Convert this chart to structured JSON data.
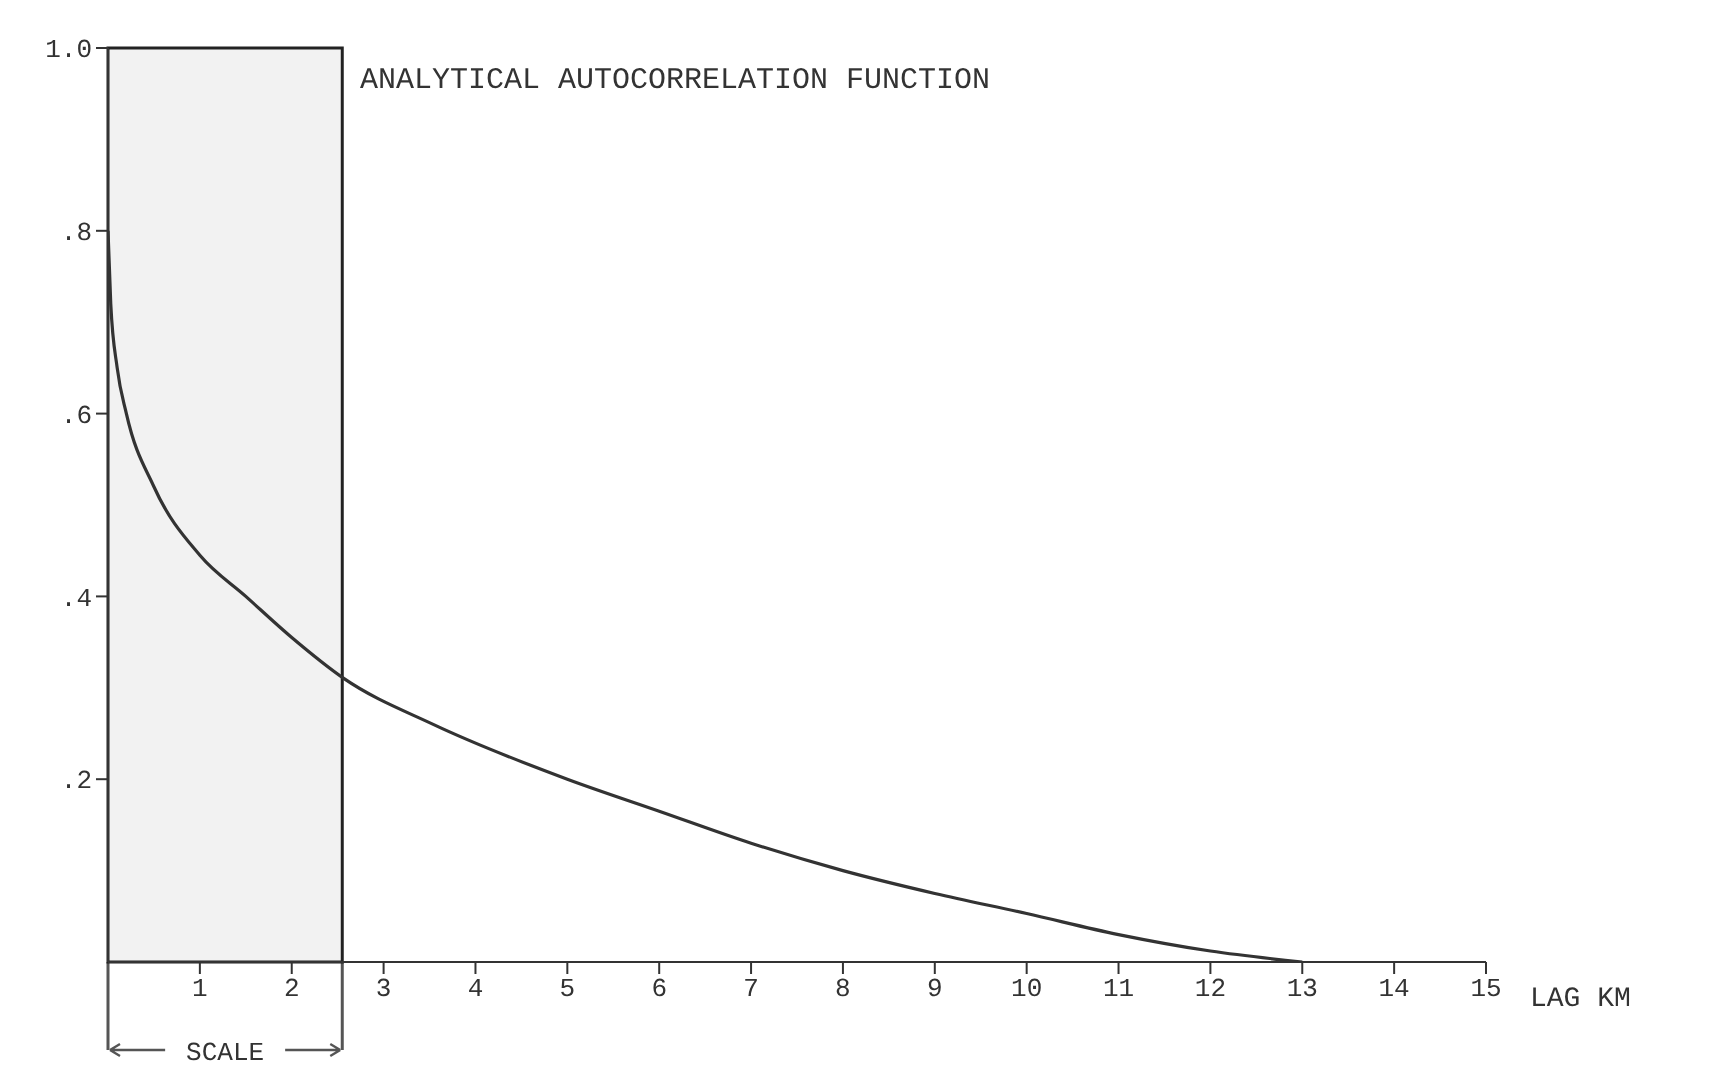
{
  "chart_data": {
    "type": "line",
    "title": "ANALYTICAL AUTOCORRELATION FUNCTION",
    "xlabel": "LAG KM",
    "x": [
      0,
      0.03,
      0.1,
      0.2,
      0.5,
      1,
      1.5,
      2,
      2.57,
      3.54,
      5,
      6,
      7,
      8,
      9,
      10,
      11,
      12,
      13
    ],
    "series": [
      {
        "color": "#333333",
        "values": [
          0.8,
          0.72,
          0.65,
          0.6,
          0.52,
          0.445,
          0.4,
          0.355,
          0.31,
          0.26,
          0.2,
          0.165,
          0.13,
          0.1,
          0.075,
          0.053,
          0.03,
          0.012,
          0
        ]
      }
    ],
    "xlim": [
      0,
      15
    ],
    "xticks": [
      1,
      2,
      3,
      4,
      5,
      6,
      7,
      8,
      9,
      10,
      11,
      12,
      13,
      14,
      15
    ],
    "ylim": [
      0,
      1
    ],
    "yticks": [
      {
        "value": 0.2,
        "label": ".2"
      },
      {
        "value": 0.4,
        "label": ".4"
      },
      {
        "value": 0.6,
        "label": ".6"
      },
      {
        "value": 0.8,
        "label": ".8"
      },
      {
        "value": 1,
        "label": "1.0"
      }
    ],
    "bands": [
      {
        "axis": "x",
        "from": 0,
        "to": 2.55,
        "label": "SCALE",
        "color": "#222222"
      }
    ],
    "grid": false,
    "legend": false,
    "marker": "none",
    "line_style": "solid"
  }
}
